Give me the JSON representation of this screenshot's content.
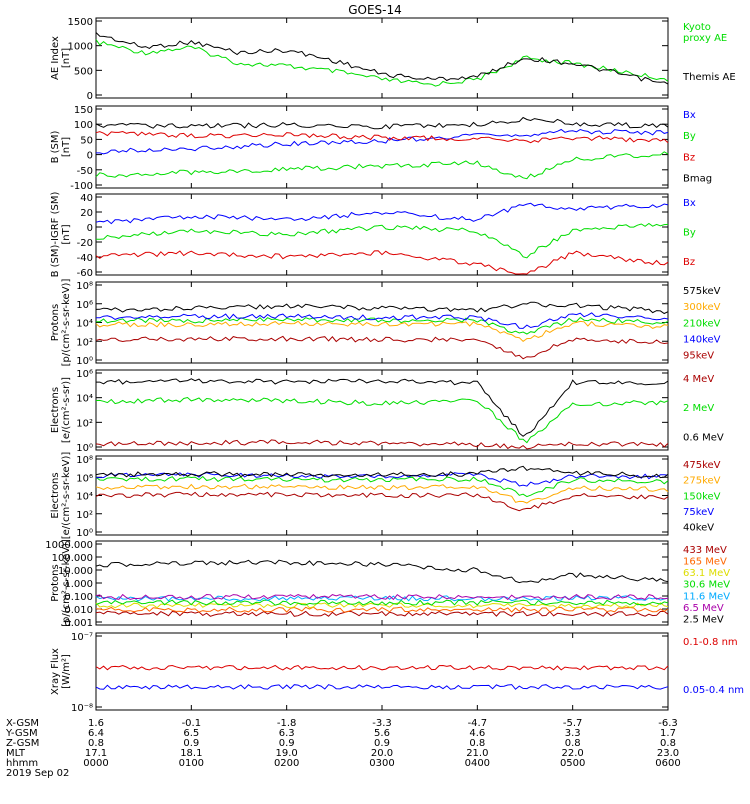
{
  "title": "GOES-14",
  "chart_data": [
    {
      "type": "line",
      "ylabel": "AE Index\n[nT]",
      "yticks": [
        "1500",
        "1000",
        "500",
        "0"
      ],
      "yrange": [
        0,
        1500
      ],
      "series": [
        {
          "name": "Kyoto proxy AE",
          "label": "Kyoto\nproxy AE",
          "color": "#00dd00",
          "x": [
            0,
            0.5,
            1,
            1.5,
            2,
            2.5,
            3,
            3.5,
            4,
            4.5,
            5,
            5.5,
            6
          ],
          "y": [
            1050,
            850,
            950,
            650,
            600,
            500,
            350,
            250,
            350,
            750,
            650,
            500,
            350
          ]
        },
        {
          "name": "Themis AE",
          "label": "Themis AE",
          "color": "#000000",
          "x": [
            0,
            0.5,
            1,
            1.5,
            2,
            2.5,
            3,
            3.5,
            4,
            4.5,
            5,
            5.5,
            6
          ],
          "y": [
            1200,
            950,
            1050,
            850,
            900,
            700,
            450,
            350,
            400,
            750,
            650,
            450,
            250
          ]
        }
      ]
    },
    {
      "type": "line",
      "ylabel": "B (SM)\n[nT]",
      "yticks": [
        "150",
        "100",
        "50",
        "0",
        "-50",
        "-100"
      ],
      "yrange": [
        -110,
        150
      ],
      "series": [
        {
          "name": "Bx",
          "label": "Bx",
          "color": "#0000ff",
          "x": [
            0,
            1,
            2,
            3,
            4,
            4.5,
            5,
            6
          ],
          "y": [
            5,
            15,
            30,
            40,
            55,
            60,
            70,
            65
          ]
        },
        {
          "name": "By",
          "label": "By",
          "color": "#00dd00",
          "x": [
            0,
            1,
            2,
            3,
            4,
            4.5,
            5,
            6
          ],
          "y": [
            -70,
            -60,
            -50,
            -40,
            -30,
            -80,
            -20,
            0
          ]
        },
        {
          "name": "Bz",
          "label": "Bz",
          "color": "#dd0000",
          "x": [
            0,
            1,
            2,
            3,
            4,
            4.5,
            5,
            6
          ],
          "y": [
            65,
            55,
            60,
            50,
            45,
            40,
            50,
            40
          ]
        },
        {
          "name": "Bmag",
          "label": "Bmag",
          "color": "#000000",
          "x": [
            0,
            1,
            2,
            3,
            4,
            4.5,
            5,
            6
          ],
          "y": [
            90,
            85,
            90,
            85,
            90,
            110,
            95,
            85
          ]
        }
      ]
    },
    {
      "type": "line",
      "ylabel": "B (SM)-IGRF (SM)\n[nT]",
      "yticks": [
        "40",
        "20",
        "0",
        "-20",
        "-40",
        "-60"
      ],
      "yrange": [
        -70,
        40
      ],
      "series": [
        {
          "name": "Bx",
          "label": "Bx",
          "color": "#0000ff",
          "x": [
            0,
            1,
            2,
            3,
            4,
            4.5,
            5,
            6
          ],
          "y": [
            0,
            10,
            5,
            15,
            5,
            25,
            20,
            25
          ]
        },
        {
          "name": "By",
          "label": "By",
          "color": "#00dd00",
          "x": [
            0,
            1,
            2,
            3,
            4,
            4.5,
            5,
            6
          ],
          "y": [
            -20,
            -10,
            -15,
            -5,
            -10,
            -45,
            -10,
            0
          ]
        },
        {
          "name": "Bz",
          "label": "Bz",
          "color": "#dd0000",
          "x": [
            0,
            1,
            2,
            3,
            4,
            4.5,
            5,
            6
          ],
          "y": [
            -45,
            -40,
            -45,
            -40,
            -55,
            -70,
            -40,
            -55
          ]
        }
      ]
    },
    {
      "type": "line",
      "log": true,
      "ylabel": "Protons\n[p/(cm²-s-sr-keV)]",
      "yticks": [
        "10⁸",
        "10⁶",
        "10⁴",
        "10²",
        "10⁰"
      ],
      "yrange": [
        0,
        8
      ],
      "series": [
        {
          "name": "575keV",
          "label": "575keV",
          "color": "#000000",
          "x": [
            0,
            1,
            2,
            3,
            4,
            4.5,
            5,
            6
          ],
          "y": [
            5.2,
            5.4,
            5.6,
            5.4,
            5.2,
            5.8,
            5.7,
            5.1
          ]
        },
        {
          "name": "300keV",
          "label": "300keV",
          "color": "#ffaa00",
          "x": [
            0,
            1,
            2,
            3,
            4,
            4.5,
            5,
            6
          ],
          "y": [
            3.8,
            3.8,
            3.9,
            3.8,
            3.9,
            2.3,
            3.9,
            3.6
          ]
        },
        {
          "name": "210keV",
          "label": "210keV",
          "color": "#00dd00",
          "x": [
            0,
            1,
            2,
            3,
            4,
            4.5,
            5,
            6
          ],
          "y": [
            4.2,
            4.2,
            4.3,
            4.2,
            4.2,
            2.8,
            4.3,
            4.0
          ]
        },
        {
          "name": "140keV",
          "label": "140keV",
          "color": "#0000ff",
          "x": [
            0,
            1,
            2,
            3,
            4,
            4.5,
            5,
            6
          ],
          "y": [
            4.5,
            4.6,
            4.6,
            4.5,
            4.5,
            3.5,
            4.8,
            4.4
          ]
        },
        {
          "name": "95keV",
          "label": "95keV",
          "color": "#aa0000",
          "x": [
            0,
            1,
            2,
            3,
            4,
            4.5,
            5,
            6
          ],
          "y": [
            2.3,
            2.4,
            2.4,
            2.3,
            2.3,
            0.5,
            2.4,
            2.0
          ]
        }
      ]
    },
    {
      "type": "line",
      "log": true,
      "ylabel": "Electrons\n[e/(cm²-s-sr)]",
      "yticks": [
        "10⁶",
        "10⁴",
        "10²",
        "10⁰"
      ],
      "yrange": [
        0,
        6
      ],
      "series": [
        {
          "name": "4 MeV",
          "label": "4 MeV",
          "color": "#aa0000",
          "x": [
            0,
            1,
            2,
            3,
            4,
            4.5,
            5,
            6
          ],
          "y": [
            0.5,
            0.5,
            0.6,
            0.5,
            0.4,
            0.2,
            0.5,
            0.4
          ]
        },
        {
          "name": "2 MeV",
          "label": "2 MeV",
          "color": "#00dd00",
          "x": [
            0,
            1,
            2,
            3,
            4,
            4.5,
            5,
            6
          ],
          "y": [
            3.6,
            3.8,
            3.7,
            3.5,
            3.7,
            0.6,
            3.4,
            3.6
          ]
        },
        {
          "name": "0.6 MeV",
          "label": "0.6 MeV",
          "color": "#000000",
          "x": [
            0,
            1,
            2,
            3,
            4,
            4.5,
            5,
            6
          ],
          "y": [
            5.1,
            5.2,
            5.1,
            5.2,
            5.0,
            0.9,
            5.1,
            5.0
          ]
        }
      ]
    },
    {
      "type": "line",
      "log": true,
      "ylabel": "Electrons\n[e/(cm²-s-sr-keV)]",
      "yticks": [
        "10⁸",
        "10⁶",
        "10⁴",
        "10²",
        "10⁰"
      ],
      "yrange": [
        0,
        8
      ],
      "series": [
        {
          "name": "475keV",
          "label": "475keV",
          "color": "#aa0000",
          "x": [
            0,
            1,
            2,
            3,
            4,
            4.5,
            5,
            6
          ],
          "y": [
            4.0,
            4.1,
            4.1,
            4.0,
            4.1,
            2.5,
            4.0,
            3.8
          ]
        },
        {
          "name": "275keV",
          "label": "275keV",
          "color": "#ffaa00",
          "x": [
            0,
            1,
            2,
            3,
            4,
            4.5,
            5,
            6
          ],
          "y": [
            4.8,
            4.9,
            4.9,
            4.8,
            4.9,
            3.2,
            4.8,
            4.6
          ]
        },
        {
          "name": "150keV",
          "label": "150keV",
          "color": "#00dd00",
          "x": [
            0,
            1,
            2,
            3,
            4,
            4.5,
            5,
            6
          ],
          "y": [
            5.6,
            5.7,
            5.6,
            5.6,
            5.7,
            4.0,
            5.6,
            5.4
          ]
        },
        {
          "name": "75keV",
          "label": "75keV",
          "color": "#0000ff",
          "x": [
            0,
            1,
            2,
            3,
            4,
            4.5,
            5,
            6
          ],
          "y": [
            6.0,
            6.1,
            6.0,
            6.0,
            6.1,
            5.0,
            6.0,
            5.9
          ]
        },
        {
          "name": "40keV",
          "label": "40keV",
          "color": "#000000",
          "x": [
            0,
            1,
            2,
            3,
            4,
            4.5,
            5,
            6
          ],
          "y": [
            6.1,
            6.2,
            6.1,
            6.1,
            6.2,
            6.8,
            6.3,
            6.0
          ]
        }
      ]
    },
    {
      "type": "line",
      "log": true,
      "ylabel": "Protons\n[p/(cm²-s-sr-keV)]",
      "yticks": [
        "1000.000",
        "100.000",
        "10.000",
        "1.000",
        "0.100",
        "0.010",
        "0.001"
      ],
      "yrange": [
        -3,
        3
      ],
      "series": [
        {
          "name": "433 MeV",
          "label": "433 MeV",
          "color": "#aa0000",
          "x": [
            0,
            6
          ],
          "y": [
            -2.2,
            -2.2
          ]
        },
        {
          "name": "165 MeV",
          "label": "165 MeV",
          "color": "#ff6600",
          "x": [
            0,
            6
          ],
          "y": [
            -1.9,
            -1.9
          ]
        },
        {
          "name": "63.1 MeV",
          "label": "63.1 MeV",
          "color": "#dddd00",
          "x": [
            0,
            6
          ],
          "y": [
            -1.6,
            -1.6
          ]
        },
        {
          "name": "30.6 MeV",
          "label": "30.6 MeV",
          "color": "#00dd00",
          "x": [
            0,
            6
          ],
          "y": [
            -1.4,
            -1.4
          ]
        },
        {
          "name": "11.6 MeV",
          "label": "11.6 MeV",
          "color": "#00aaff",
          "x": [
            0,
            6
          ],
          "y": [
            -1.1,
            -1.1
          ]
        },
        {
          "name": "6.5 MeV",
          "label": "6.5 MeV",
          "color": "#aa00aa",
          "x": [
            0,
            6
          ],
          "y": [
            -1.0,
            -1.0
          ]
        },
        {
          "name": "2.5 MeV",
          "label": "2.5 MeV",
          "color": "#000000",
          "x": [
            0,
            1,
            2,
            3,
            4,
            4.5,
            5,
            6
          ],
          "y": [
            1.3,
            1.4,
            1.5,
            1.3,
            0.9,
            0.0,
            0.6,
            0.2
          ]
        }
      ]
    },
    {
      "type": "line",
      "log": true,
      "ylabel": "Xray Flux\n[W/m²]",
      "yticks": [
        "10⁻⁷",
        "10⁻⁸"
      ],
      "yrange": [
        -8,
        -7
      ],
      "series": [
        {
          "name": "0.1-0.8 nm",
          "label": "0.1-0.8 nm",
          "color": "#dd0000",
          "x": [
            0,
            6
          ],
          "y": [
            -7.45,
            -7.45
          ]
        },
        {
          "name": "0.05-0.4 nm",
          "label": "0.05-0.4 nm",
          "color": "#0000ff",
          "x": [
            0,
            6
          ],
          "y": [
            -7.7,
            -7.7
          ]
        }
      ]
    }
  ],
  "xaxis": {
    "rows": [
      {
        "label": "X-GSM",
        "values": [
          "1.6",
          "-0.1",
          "-1.8",
          "-3.3",
          "-4.7",
          "-5.7",
          "-6.3"
        ]
      },
      {
        "label": "Y-GSM",
        "values": [
          "6.4",
          "6.5",
          "6.3",
          "5.6",
          "4.6",
          "3.3",
          "1.7"
        ]
      },
      {
        "label": "Z-GSM",
        "values": [
          "0.8",
          "0.9",
          "0.9",
          "0.9",
          "0.8",
          "0.8",
          "0.8"
        ]
      },
      {
        "label": "MLT",
        "values": [
          "17.1",
          "18.1",
          "19.0",
          "20.0",
          "21.0",
          "22.0",
          "23.0"
        ]
      },
      {
        "label": "hhmm",
        "values": [
          "0000",
          "0100",
          "0200",
          "0300",
          "0400",
          "0500",
          "0600"
        ]
      }
    ],
    "date": "2019 Sep 02"
  }
}
